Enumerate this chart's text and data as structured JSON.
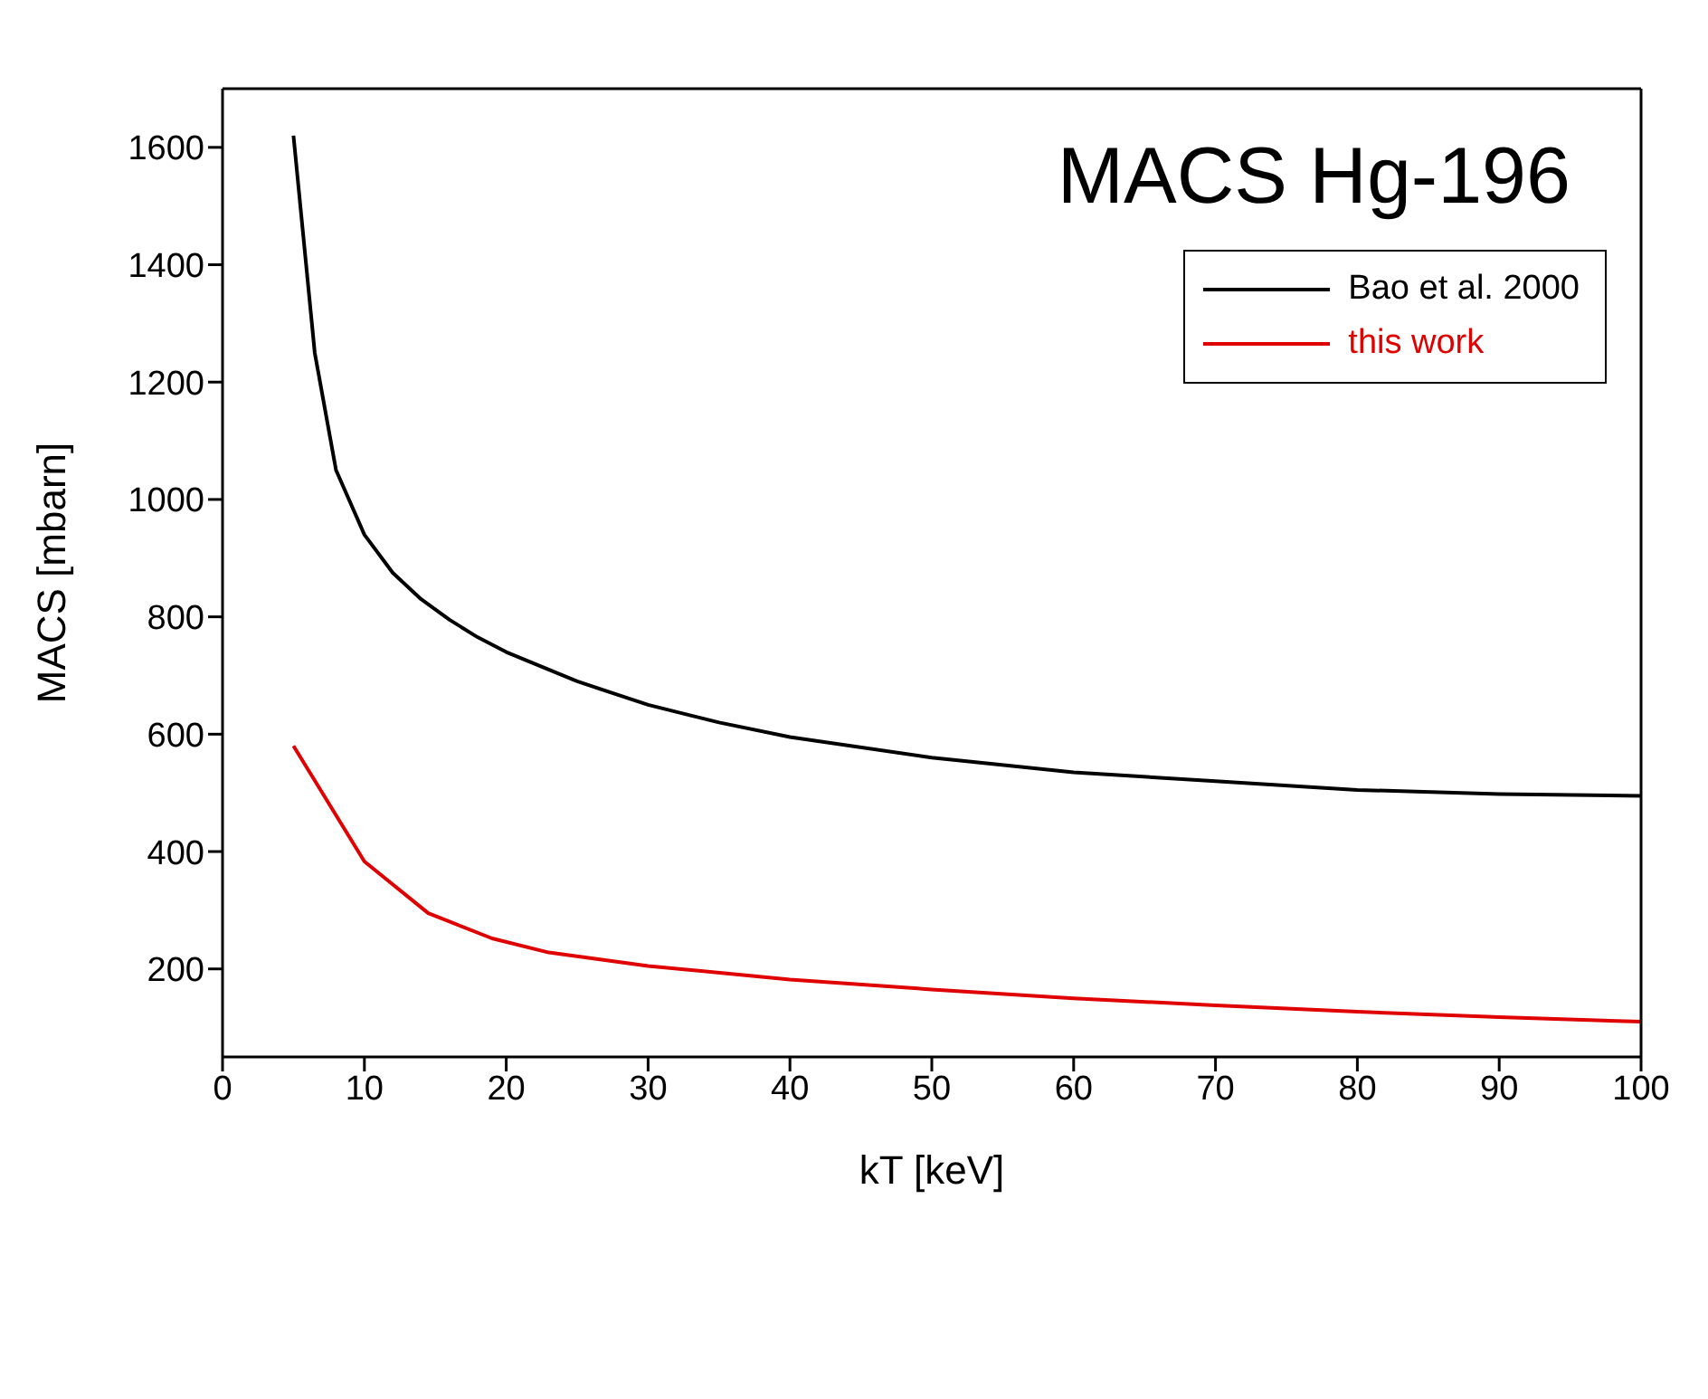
{
  "chart_data": {
    "type": "line",
    "title": "MACS Hg-196",
    "xlabel": "kT [keV]",
    "ylabel": "MACS [mbarn]",
    "xlim": [
      0,
      100
    ],
    "xticks": [
      0,
      10,
      20,
      30,
      40,
      50,
      60,
      70,
      80,
      90,
      100
    ],
    "ylim": [
      50,
      1700
    ],
    "yticks": [
      200,
      400,
      600,
      800,
      1000,
      1200,
      1400,
      1600
    ],
    "legend": "top right",
    "grid": false,
    "marker": "none",
    "line_style": "solid",
    "series": [
      {
        "name": "Bao et al. 2000",
        "color": "#000000",
        "x": [
          5,
          6.5,
          8,
          10,
          12,
          14,
          16,
          18,
          20,
          25,
          30,
          35,
          40,
          50,
          60,
          70,
          80,
          90,
          100
        ],
        "values": [
          1620,
          1250,
          1050,
          940,
          875,
          830,
          795,
          765,
          740,
          690,
          650,
          620,
          595,
          560,
          535,
          520,
          505,
          498,
          495
        ]
      },
      {
        "name": "this work",
        "color": "#e00000",
        "x": [
          5,
          10,
          14.5,
          19,
          23,
          30,
          40,
          50,
          60,
          70,
          80,
          90,
          100
        ],
        "values": [
          580,
          383,
          295,
          252,
          228,
          205,
          182,
          165,
          150,
          138,
          127,
          118,
          110
        ]
      }
    ]
  }
}
